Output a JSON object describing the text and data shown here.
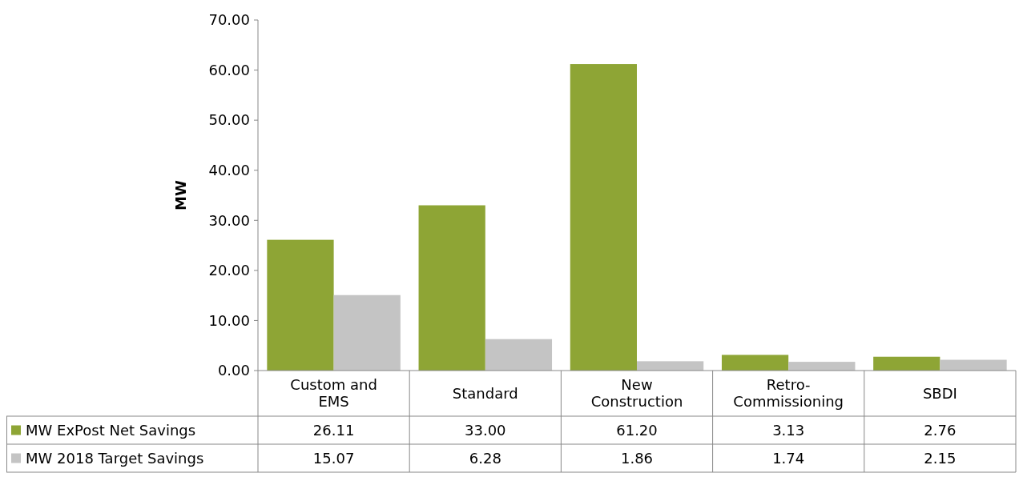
{
  "chart_data": {
    "type": "bar",
    "ylabel": "MW",
    "categories": [
      "Custom and EMS",
      "Standard",
      "New Construction",
      "Retro-Commissioning",
      "SBDI"
    ],
    "series": [
      {
        "name": "MW ExPost Net Savings",
        "color": "#8ea535",
        "values": [
          26.11,
          33.0,
          61.2,
          3.13,
          2.76
        ],
        "value_labels": [
          "26.11",
          "33.00",
          "61.20",
          "3.13",
          "2.76"
        ]
      },
      {
        "name": "MW 2018 Target Savings",
        "color": "#c4c4c4",
        "values": [
          15.07,
          6.28,
          1.86,
          1.74,
          2.15
        ],
        "value_labels": [
          "15.07",
          "6.28",
          "1.86",
          "1.74",
          "2.15"
        ]
      }
    ],
    "ylim": [
      0,
      70
    ],
    "yticks": [
      {
        "value": 0,
        "label": "0.00"
      },
      {
        "value": 10,
        "label": "10.00"
      },
      {
        "value": 20,
        "label": "20.00"
      },
      {
        "value": 30,
        "label": "30.00"
      },
      {
        "value": 40,
        "label": "40.00"
      },
      {
        "value": 50,
        "label": "50.00"
      },
      {
        "value": 60,
        "label": "60.00"
      },
      {
        "value": 70,
        "label": "70.00"
      }
    ],
    "legend": "bottom",
    "grid": false
  }
}
